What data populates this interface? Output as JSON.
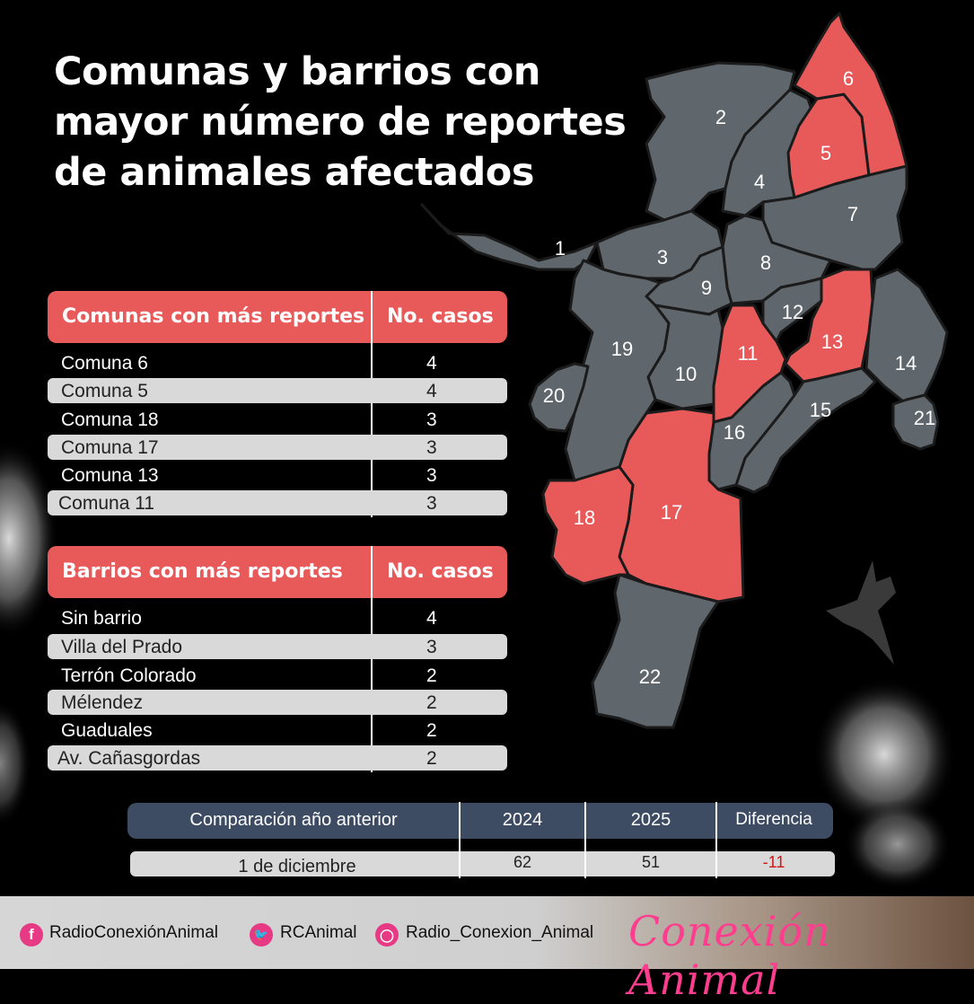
{
  "title": {
    "lines": [
      "Comunas y barrios con",
      "mayor número de reportes",
      "de animales afectados"
    ]
  },
  "comunas_table": {
    "header": [
      "Comunas con más reportes",
      "No. casos"
    ],
    "rows": [
      {
        "name": "Comuna 6",
        "cases": "4"
      },
      {
        "name": "Comuna 5",
        "cases": "4"
      },
      {
        "name": "Comuna 18",
        "cases": "3"
      },
      {
        "name": "Comuna 17",
        "cases": "3"
      },
      {
        "name": "Comuna 13",
        "cases": "3"
      },
      {
        "name": "Comuna 11",
        "cases": "3"
      }
    ]
  },
  "barrios_table": {
    "header": [
      "Barrios con más reportes",
      "No. casos"
    ],
    "rows": [
      {
        "name": "Sin barrio",
        "cases": "4"
      },
      {
        "name": "Villa del Prado",
        "cases": "3"
      },
      {
        "name": "Terrón Colorado",
        "cases": "2"
      },
      {
        "name": "Mélendez",
        "cases": "2"
      },
      {
        "name": "Guaduales",
        "cases": "2"
      },
      {
        "name": "Av. Cañasgordas",
        "cases": "2"
      }
    ]
  },
  "comparison": {
    "header": [
      "Comparación año anterior",
      "2024",
      "2025",
      "Diferencia"
    ],
    "row": {
      "label": "1 de diciembre",
      "y2024": "62",
      "y2025": "51",
      "diff": "-11"
    },
    "diff_color": "#d01818"
  },
  "map": {
    "comunas": [
      "1",
      "2",
      "3",
      "4",
      "5",
      "6",
      "7",
      "8",
      "9",
      "10",
      "11",
      "12",
      "13",
      "14",
      "15",
      "16",
      "17",
      "18",
      "19",
      "20",
      "21",
      "22"
    ],
    "highlighted": [
      "5",
      "6",
      "11",
      "13",
      "17",
      "18"
    ],
    "colors": {
      "default": "#5f676d",
      "highlight": "#e85a5a",
      "border": "#1b1b1b"
    }
  },
  "footer": {
    "facebook": "RadioConexiónAnimal",
    "twitter": "RCAnimal",
    "instagram": "Radio_Conexion_Animal",
    "brand": "Conexión Animal",
    "icons": [
      "facebook-icon",
      "twitter-icon",
      "instagram-icon"
    ]
  }
}
